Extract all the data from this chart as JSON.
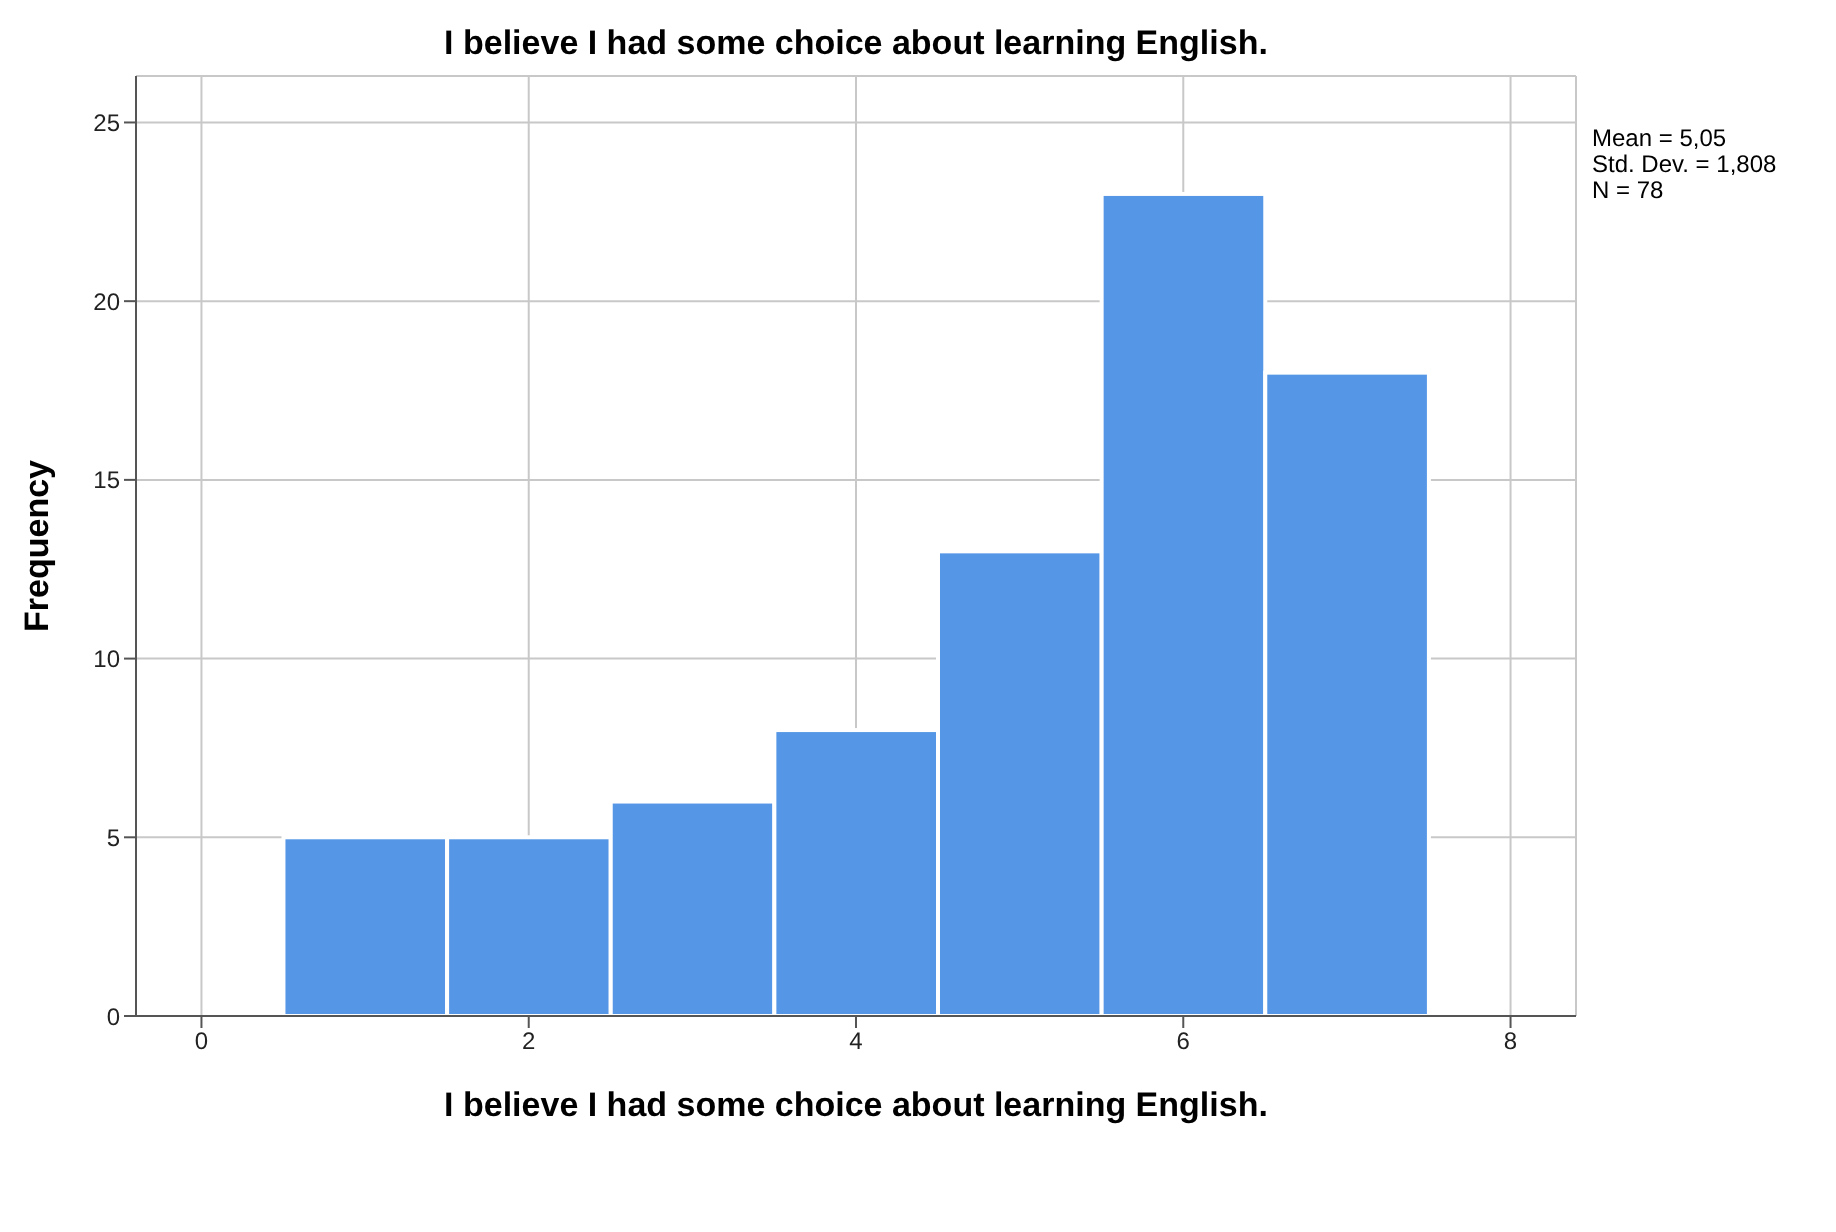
{
  "chart_data": {
    "type": "histogram",
    "title": "I believe I had some choice about learning English.",
    "xlabel": "I believe I had some choice about learning English.",
    "ylabel": "Frequency",
    "bins": [
      0.5,
      1.5,
      2.5,
      3.5,
      4.5,
      5.5,
      6.5,
      7.5
    ],
    "values": [
      5,
      5,
      6,
      8,
      13,
      23,
      18
    ],
    "color": "#5596e6",
    "xlim": [
      -0.4,
      8.4
    ],
    "xticks": [
      0,
      2,
      4,
      6,
      8
    ],
    "ylim": [
      0,
      26.3
    ],
    "yticks": [
      0,
      5,
      10,
      15,
      20,
      25
    ],
    "grid": true,
    "annotations": [
      "Mean = 5,05",
      "Std. Dev. = 1,808",
      "N = 78"
    ]
  }
}
